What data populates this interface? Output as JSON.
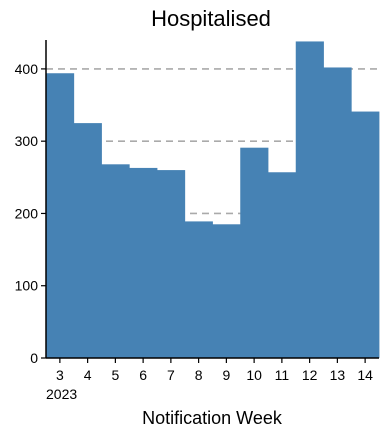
{
  "chart_data": {
    "type": "bar",
    "title": "Hospitalised",
    "xlabel": "Notification Week",
    "ylabel": "",
    "categories": [
      "3",
      "4",
      "5",
      "6",
      "7",
      "8",
      "9",
      "10",
      "11",
      "12",
      "13",
      "14"
    ],
    "year_label": "2023",
    "values": [
      394,
      325,
      268,
      263,
      260,
      189,
      185,
      291,
      257,
      438,
      402,
      341
    ],
    "ylim": [
      0,
      440
    ],
    "yticks": [
      0,
      100,
      200,
      300,
      400
    ],
    "bar_color": "#4682b4",
    "grid": false,
    "reference_lines": [
      400,
      300,
      200
    ],
    "reference_line_color": "#aaaaaa"
  }
}
